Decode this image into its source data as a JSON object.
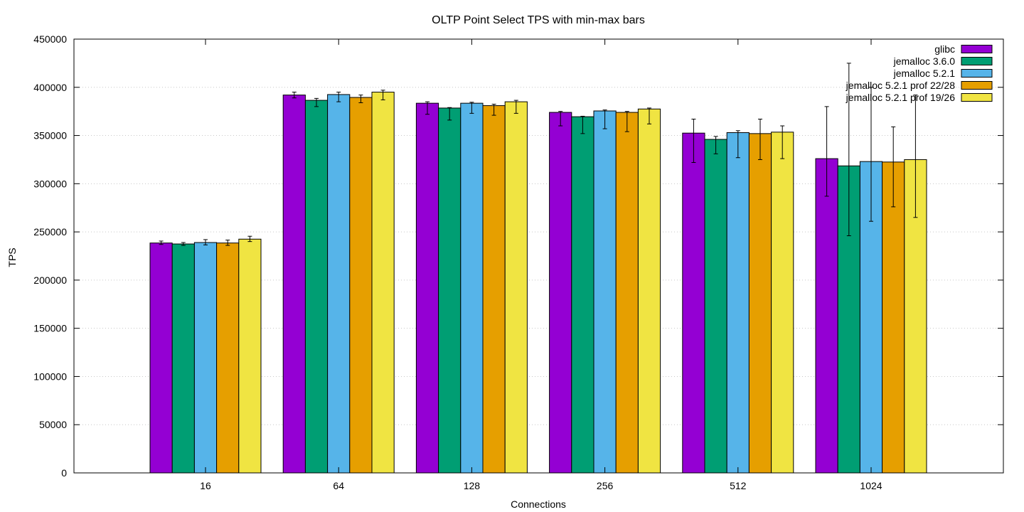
{
  "chart_data": {
    "type": "bar",
    "title": "OLTP Point Select TPS with min-max bars",
    "xlabel": "Connections",
    "ylabel": "TPS",
    "ylim": [
      0,
      450000
    ],
    "yticks": [
      0,
      50000,
      100000,
      150000,
      200000,
      250000,
      300000,
      350000,
      400000,
      450000
    ],
    "grid": true,
    "legend_position": "top-right",
    "categories": [
      "16",
      "64",
      "128",
      "256",
      "512",
      "1024"
    ],
    "series": [
      {
        "name": "glibc",
        "color": "#9400d3",
        "values": [
          238500,
          392000,
          383500,
          374000,
          352500,
          326000
        ],
        "min": [
          237000,
          389000,
          372000,
          360000,
          322000,
          287000
        ],
        "max": [
          240500,
          395000,
          385000,
          375000,
          367000,
          380000
        ]
      },
      {
        "name": "jemalloc 3.6.0",
        "color": "#009e73",
        "values": [
          237500,
          386500,
          378500,
          369500,
          346000,
          318500
        ],
        "min": [
          236000,
          380000,
          366000,
          352000,
          331000,
          246000
        ],
        "max": [
          239000,
          388500,
          379000,
          370000,
          349000,
          425000
        ]
      },
      {
        "name": "jemalloc 5.2.1",
        "color": "#56b4e9",
        "values": [
          239000,
          392500,
          383500,
          375500,
          353000,
          323000
        ],
        "min": [
          236500,
          385000,
          373000,
          357000,
          327000,
          261000
        ],
        "max": [
          242000,
          395000,
          384500,
          376500,
          355000,
          400000
        ]
      },
      {
        "name": "jemalloc 5.2.1 prof 22/28",
        "color": "#e69f00",
        "values": [
          238500,
          389500,
          381000,
          374000,
          352000,
          322500
        ],
        "min": [
          236000,
          384000,
          371000,
          354000,
          325000,
          276000
        ],
        "max": [
          241500,
          392000,
          382500,
          375000,
          367000,
          359000
        ]
      },
      {
        "name": "jemalloc 5.2.1 prof 19/26",
        "color": "#f0e442",
        "values": [
          242500,
          395000,
          385000,
          377500,
          353500,
          325000
        ],
        "min": [
          240000,
          387000,
          373000,
          362000,
          326000,
          265000
        ],
        "max": [
          245500,
          397000,
          386500,
          378500,
          360000,
          392000
        ]
      }
    ]
  }
}
